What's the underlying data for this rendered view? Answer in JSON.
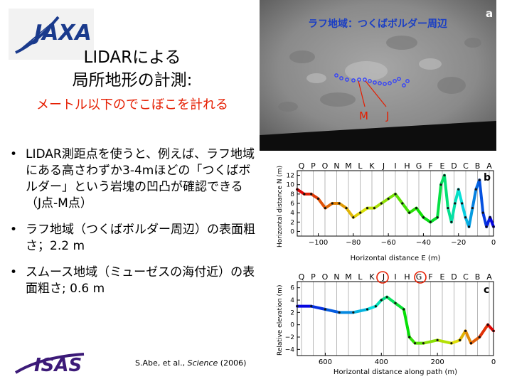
{
  "title": {
    "line1": "LIDARによる",
    "line2": "局所地形の計測:",
    "subtitle": "メートル以下のでこぼこを計れる"
  },
  "bullets": [
    "LIDAR測距点を使うと、例えば、ラフ地域にある高さわずか3-4mほどの「つくばボルダー」という岩塊の凹凸が確認できる（J点-M点）",
    "ラフ地域（つくばボルダー周辺）の表面粗さ；2.2 m",
    "スムース地域（ミューゼスの海付近）の表面粗さ; 0.6 m"
  ],
  "citation": {
    "authors": "S.Abe, et al., ",
    "journal": "Science",
    "year": " (2006)"
  },
  "photo": {
    "label": "ラフ地域：つくばボルダー周辺",
    "panel_letter": "a",
    "marker_m": "M",
    "marker_j": "J"
  },
  "panel_b": {
    "letter": "b",
    "top_labels": [
      "Q",
      "P",
      "O",
      "N",
      "M",
      "L",
      "K",
      "J",
      "I",
      "H",
      "G",
      "F",
      "E",
      "D",
      "C",
      "B",
      "A"
    ],
    "ylabel": "Horizontal distance N (m)",
    "xlabel": "Horizontal distance E (m)",
    "yticks": [
      "0",
      "2",
      "4",
      "6",
      "8",
      "10",
      "12"
    ],
    "xticks": [
      "−100",
      "−80",
      "−60",
      "−40",
      "−20",
      "0"
    ]
  },
  "panel_c": {
    "letter": "c",
    "top_labels": [
      "Q",
      "P",
      "O",
      "N",
      "M",
      "L",
      "K",
      "J",
      "I",
      "H",
      "G",
      "F",
      "E",
      "D",
      "C",
      "B",
      "A"
    ],
    "ylabel": "Relative elevation (m)",
    "xlabel": "Horizontal distance along path (m)",
    "yticks": [
      "6",
      "4",
      "2",
      "0",
      "−2",
      "−4"
    ],
    "xticks": [
      "600",
      "400",
      "200",
      "0"
    ]
  },
  "chart_data": [
    {
      "type": "line",
      "title": "",
      "xlabel": "Horizontal distance E (m)",
      "ylabel": "Horizontal distance N (m)",
      "xlim": [
        -112,
        0
      ],
      "ylim": [
        -1,
        13
      ],
      "x": [
        -112,
        -108,
        -104,
        -100,
        -96,
        -92,
        -88,
        -84,
        -80,
        -76,
        -72,
        -68,
        -64,
        -60,
        -56,
        -52,
        -48,
        -44,
        -40,
        -36,
        -32,
        -30,
        -28,
        -26,
        -24,
        -22,
        -20,
        -18,
        -16,
        -14,
        -12,
        -10,
        -8,
        -6,
        -4,
        -2,
        0
      ],
      "y": [
        9,
        8,
        8,
        7,
        5,
        6,
        6,
        5,
        3,
        4,
        5,
        5,
        6,
        7,
        8,
        6,
        4,
        5,
        3,
        2,
        3,
        10,
        12,
        5,
        2,
        6,
        9,
        6,
        3,
        1,
        5,
        9,
        11,
        4,
        1,
        3,
        1
      ]
    },
    {
      "type": "line",
      "title": "",
      "xlabel": "Horizontal distance along path (m)",
      "ylabel": "Relative elevation (m)",
      "xlim": [
        700,
        0
      ],
      "ylim": [
        -5,
        7
      ],
      "x": [
        700,
        650,
        600,
        550,
        500,
        450,
        420,
        400,
        380,
        350,
        320,
        300,
        280,
        250,
        200,
        150,
        120,
        100,
        80,
        50,
        20,
        0
      ],
      "y": [
        3,
        3,
        2.5,
        2,
        2,
        2.5,
        3,
        4,
        4.5,
        3.5,
        2.5,
        -2,
        -3,
        -3,
        -2.5,
        -3,
        -2.5,
        -1,
        -3,
        -2,
        0,
        -1
      ]
    }
  ]
}
